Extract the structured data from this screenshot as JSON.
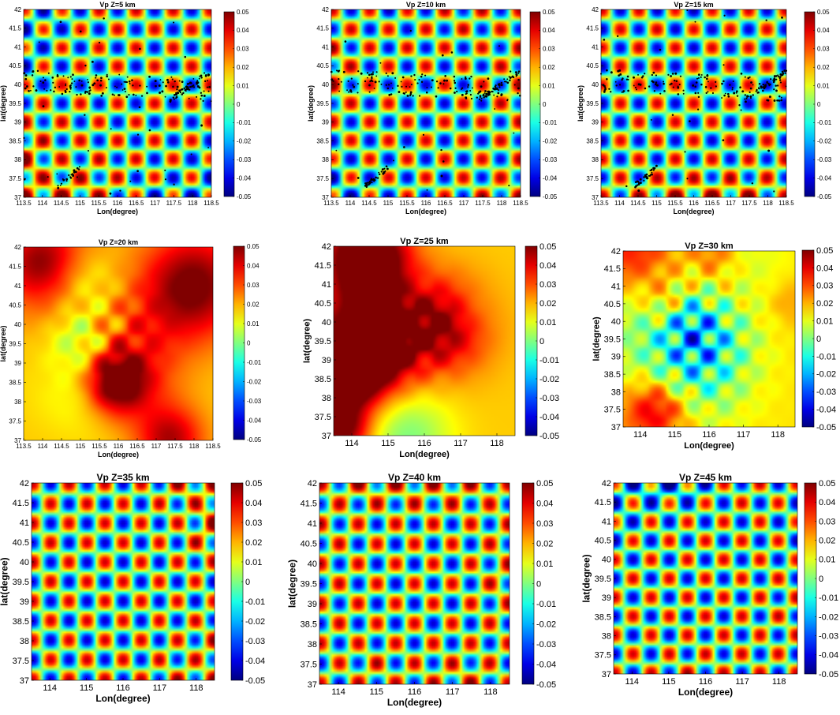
{
  "chart_data": [
    {
      "type": "heatmap",
      "title": "Vp Z=5 km",
      "xlabel": "Lon(degree)",
      "ylabel": "lat(degree)",
      "x_ticks": [
        "113.5",
        "114",
        "114.5",
        "115",
        "115.5",
        "116",
        "116.5",
        "117",
        "117.5",
        "118",
        "118.5"
      ],
      "y_ticks": [
        "37",
        "37.5",
        "38",
        "38.5",
        "39",
        "39.5",
        "40",
        "40.5",
        "41",
        "41.5",
        "42"
      ],
      "colorbar_ticks": [
        "0.05",
        "0.04",
        "0.03",
        "0.02",
        "0.01",
        "0",
        "-0.01",
        "-0.02",
        "-0.03",
        "-0.04",
        "-0.05"
      ],
      "xlim": [
        113.5,
        118.5
      ],
      "ylim": [
        37,
        42
      ],
      "clim": [
        -0.05,
        0.05
      ],
      "pattern": "checkerboard",
      "amplitude": 0.05,
      "seismicity": true
    },
    {
      "type": "heatmap",
      "title": "Vp Z=10 km",
      "xlabel": "Lon(degree)",
      "ylabel": "lat(degree)",
      "x_ticks": [
        "113.5",
        "114",
        "114.5",
        "115",
        "115.5",
        "116",
        "116.5",
        "117",
        "117.5",
        "118",
        "118.5"
      ],
      "y_ticks": [
        "37",
        "37.5",
        "38",
        "38.5",
        "39",
        "39.5",
        "40",
        "40.5",
        "41",
        "41.5",
        "42"
      ],
      "colorbar_ticks": [
        "0.05",
        "0.04",
        "0.03",
        "0.02",
        "0.01",
        "0",
        "-0.01",
        "-0.02",
        "-0.03",
        "-0.04",
        "-0.05"
      ],
      "xlim": [
        113.5,
        118.5
      ],
      "ylim": [
        37,
        42
      ],
      "clim": [
        -0.05,
        0.05
      ],
      "pattern": "checkerboard",
      "amplitude": 0.05,
      "seismicity": true
    },
    {
      "type": "heatmap",
      "title": "Vp Z=15 km",
      "xlabel": "Lon(degree)",
      "ylabel": "lat(degree)",
      "x_ticks": [
        "113.5",
        "114",
        "114.5",
        "115",
        "115.5",
        "116",
        "116.5",
        "117",
        "117.5",
        "118",
        "118.5"
      ],
      "y_ticks": [
        "37",
        "37.5",
        "38",
        "38.5",
        "39",
        "39.5",
        "40",
        "40.5",
        "41",
        "41.5",
        "42"
      ],
      "colorbar_ticks": [
        "0.05",
        "0.04",
        "0.03",
        "0.02",
        "0.01",
        "0",
        "-0.01",
        "-0.02",
        "-0.03",
        "-0.04",
        "-0.05"
      ],
      "xlim": [
        113.5,
        118.5
      ],
      "ylim": [
        37,
        42
      ],
      "clim": [
        -0.05,
        0.05
      ],
      "pattern": "checkerboard",
      "amplitude": 0.05,
      "seismicity": true
    },
    {
      "type": "heatmap",
      "title": "Vp Z=20 km",
      "xlabel": "Lon(degree)",
      "ylabel": "lat(degree)",
      "x_ticks": [
        "113.5",
        "114",
        "114.5",
        "115",
        "115.5",
        "116",
        "116.5",
        "117",
        "117.5",
        "118",
        "118.5"
      ],
      "y_ticks": [
        "37",
        "37.5",
        "38",
        "38.5",
        "39",
        "39.5",
        "40",
        "40.5",
        "41",
        "41.5",
        "42"
      ],
      "colorbar_ticks": [
        "0.05",
        "0.04",
        "0.03",
        "0.02",
        "0.01",
        "0",
        "-0.01",
        "-0.02",
        "-0.03",
        "-0.04",
        "-0.05"
      ],
      "xlim": [
        113.5,
        118.5
      ],
      "ylim": [
        37,
        42
      ],
      "clim": [
        -0.05,
        0.05
      ],
      "pattern": "smeared",
      "amplitude": 0.02,
      "seismicity": false
    },
    {
      "type": "heatmap",
      "title": "Vp Z=25 km",
      "xlabel": "Lon(degree)",
      "ylabel": "lat(degree)",
      "x_ticks": [
        "114",
        "115",
        "116",
        "117",
        "118"
      ],
      "y_ticks": [
        "37",
        "37.5",
        "38",
        "38.5",
        "39",
        "39.5",
        "40",
        "40.5",
        "41",
        "41.5",
        "42"
      ],
      "colorbar_ticks": [
        "0.05",
        "0.04",
        "0.03",
        "0.02",
        "0.01",
        "0",
        "-0.01",
        "-0.02",
        "-0.03",
        "-0.04",
        "-0.05"
      ],
      "xlim": [
        113.5,
        118.5
      ],
      "ylim": [
        37,
        42
      ],
      "clim": [
        -0.05,
        0.05
      ],
      "pattern": "smeared",
      "amplitude": 0.03,
      "seismicity": false
    },
    {
      "type": "heatmap",
      "title": "Vp Z=30 km",
      "xlabel": "Lon(degree)",
      "ylabel": "lat(degree)",
      "x_ticks": [
        "114",
        "115",
        "116",
        "117",
        "118"
      ],
      "y_ticks": [
        "37",
        "37.5",
        "38",
        "38.5",
        "39",
        "39.5",
        "40",
        "40.5",
        "41",
        "41.5",
        "42"
      ],
      "colorbar_ticks": [
        "0.05",
        "0.04",
        "0.03",
        "0.02",
        "0.01",
        "0",
        "-0.01",
        "-0.02",
        "-0.03",
        "-0.04",
        "-0.05"
      ],
      "xlim": [
        113.5,
        118.5
      ],
      "ylim": [
        37,
        42
      ],
      "clim": [
        -0.05,
        0.05
      ],
      "pattern": "partial",
      "amplitude": 0.05,
      "seismicity": false
    },
    {
      "type": "heatmap",
      "title": "Vp Z=35 km",
      "xlabel": "Lon(degree)",
      "ylabel": "lat(degree)",
      "x_ticks": [
        "114",
        "115",
        "116",
        "117",
        "118"
      ],
      "y_ticks": [
        "37",
        "37.5",
        "38",
        "38.5",
        "39",
        "39.5",
        "40",
        "40.5",
        "41",
        "41.5",
        "42"
      ],
      "colorbar_ticks": [
        "0.05",
        "0.04",
        "0.03",
        "0.02",
        "0.01",
        "0",
        "-0.01",
        "-0.02",
        "-0.03",
        "-0.04",
        "-0.05"
      ],
      "xlim": [
        113.5,
        118.5
      ],
      "ylim": [
        37,
        42
      ],
      "clim": [
        -0.05,
        0.05
      ],
      "pattern": "checkerboard",
      "amplitude": 0.05,
      "seismicity": false
    },
    {
      "type": "heatmap",
      "title": "Vp Z=40 km",
      "xlabel": "Lon(degree)",
      "ylabel": "lat(degree)",
      "x_ticks": [
        "114",
        "115",
        "116",
        "117",
        "118"
      ],
      "y_ticks": [
        "37",
        "37.5",
        "38",
        "38.5",
        "39",
        "39.5",
        "40",
        "40.5",
        "41",
        "41.5",
        "42"
      ],
      "colorbar_ticks": [
        "0.05",
        "0.04",
        "0.03",
        "0.02",
        "0.01",
        "0",
        "-0.01",
        "-0.02",
        "-0.03",
        "-0.04",
        "-0.05"
      ],
      "xlim": [
        113.5,
        118.5
      ],
      "ylim": [
        37,
        42
      ],
      "clim": [
        -0.05,
        0.05
      ],
      "pattern": "checkerboard",
      "amplitude": 0.05,
      "seismicity": false
    },
    {
      "type": "heatmap",
      "title": "Vp Z=45 km",
      "xlabel": "Lon(degree)",
      "ylabel": "lat(degree)",
      "x_ticks": [
        "114",
        "115",
        "116",
        "117",
        "118"
      ],
      "y_ticks": [
        "37",
        "37.5",
        "38",
        "38.5",
        "39",
        "39.5",
        "40",
        "40.5",
        "41",
        "41.5",
        "42"
      ],
      "colorbar_ticks": [
        "0.05",
        "0.04",
        "0.03",
        "0.02",
        "0.01",
        "0",
        "-0.01",
        "-0.02",
        "-0.03",
        "-0.04",
        "-0.05"
      ],
      "xlim": [
        113.5,
        118.5
      ],
      "ylim": [
        37,
        42
      ],
      "clim": [
        -0.05,
        0.05
      ],
      "pattern": "checkerboard",
      "amplitude": 0.05,
      "seismicity": false
    }
  ]
}
